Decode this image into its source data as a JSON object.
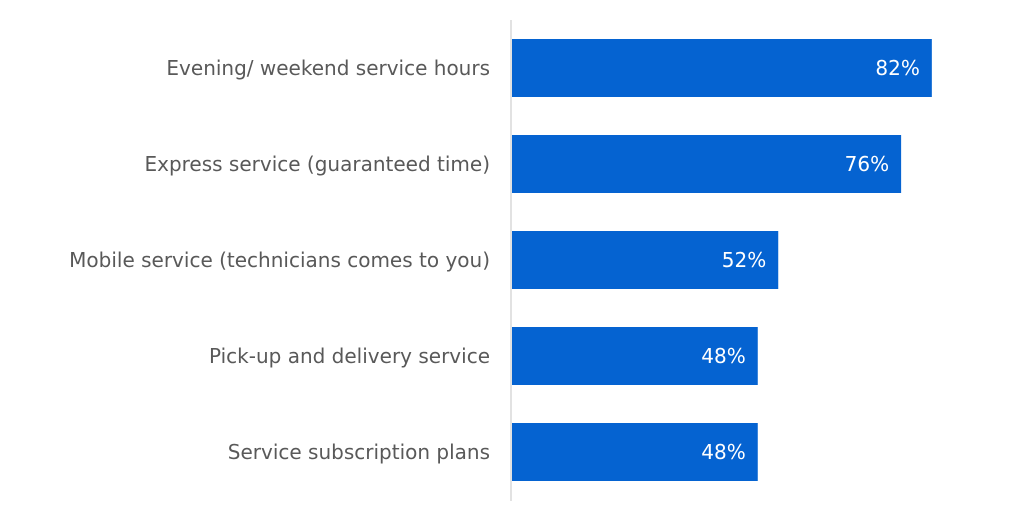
{
  "chart_data": {
    "type": "bar",
    "orientation": "horizontal",
    "categories": [
      "Evening/ weekend service hours",
      "Express service (guaranteed time)",
      "Mobile service (technicians comes to you)",
      "Pick-up and delivery service",
      "Service subscription plans"
    ],
    "values": [
      82,
      76,
      52,
      48,
      48
    ],
    "value_labels": [
      "82%",
      "76%",
      "52%",
      "48%",
      "48%"
    ],
    "unit": "%",
    "xlim": [
      0,
      100
    ],
    "grid": false,
    "legend": "none",
    "colors": {
      "bar": "#0563d1",
      "axis": "#d9d9d9",
      "category_text": "#595959",
      "value_text": "#ffffff"
    }
  }
}
